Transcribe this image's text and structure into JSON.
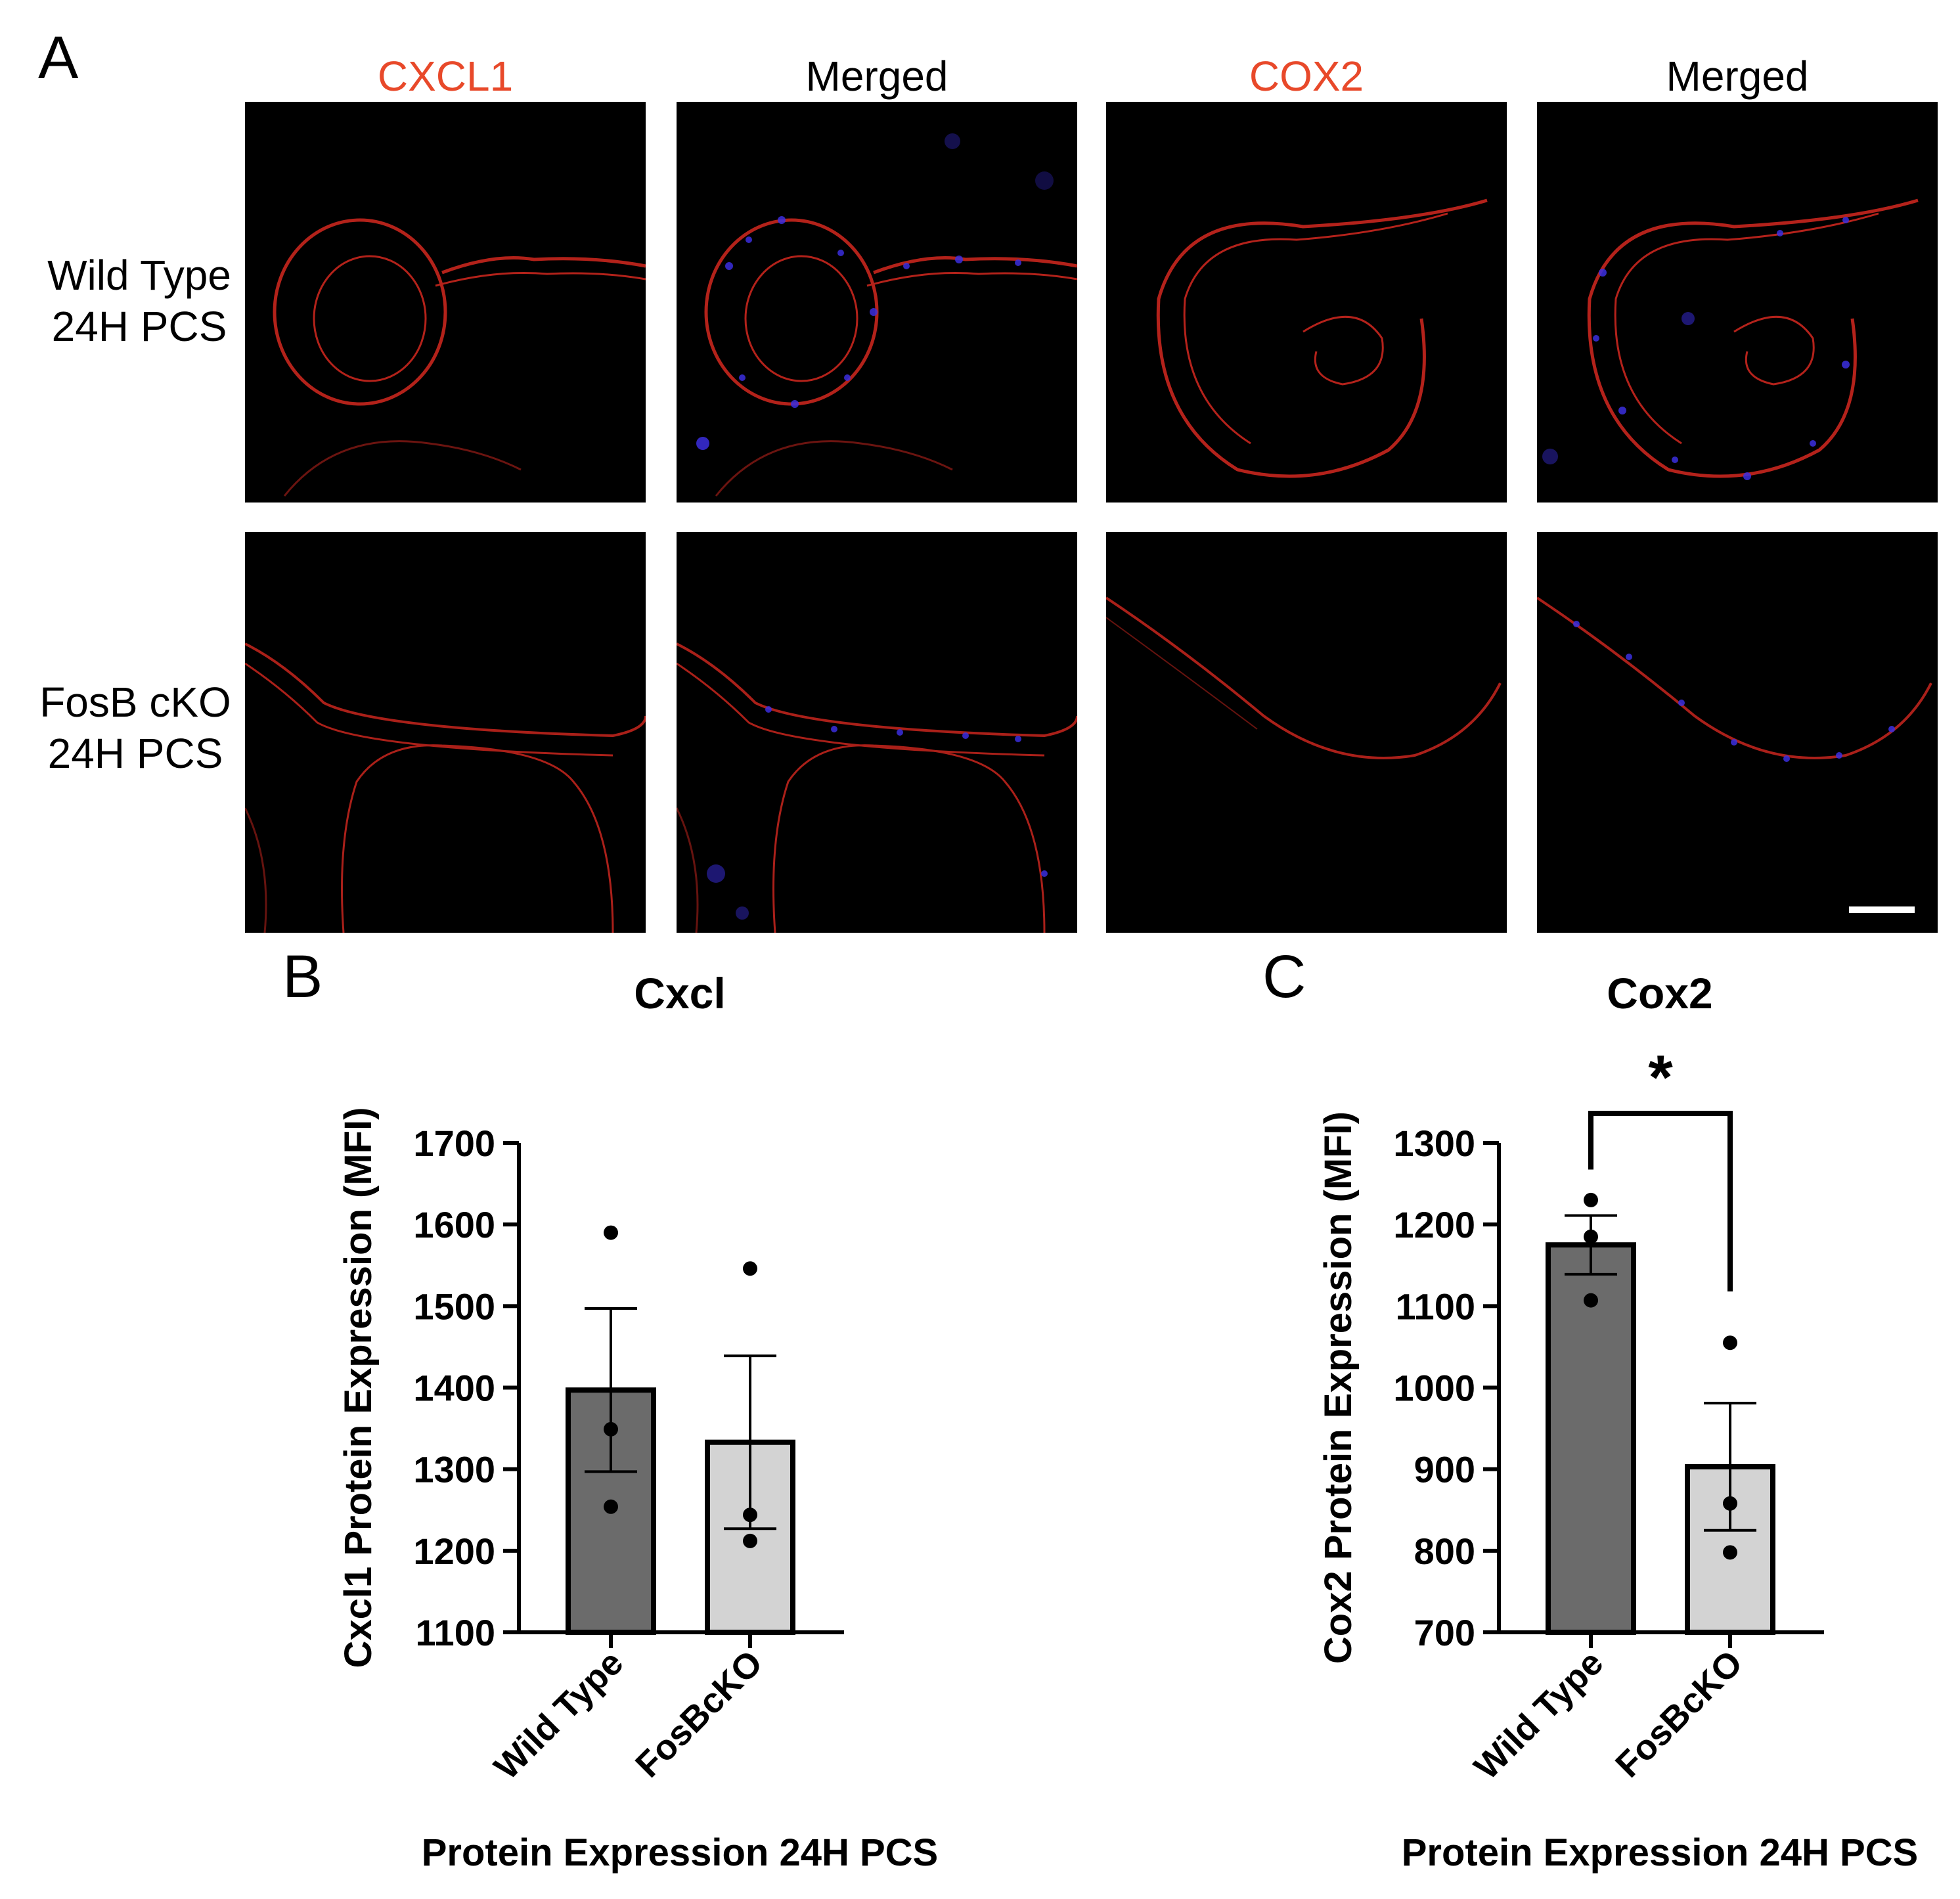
{
  "panel_a": {
    "letter": "A",
    "columns": [
      {
        "label": "CXCL1",
        "color": "#e8492a"
      },
      {
        "label": "Merged",
        "color": "#000000"
      },
      {
        "label": "COX2",
        "color": "#e8492a"
      },
      {
        "label": "Merged",
        "color": "#000000"
      }
    ],
    "rows": [
      {
        "line1": "Wild Type",
        "line2": "24H PCS"
      },
      {
        "line1": "FosB cKO",
        "line2": "24H PCS"
      }
    ],
    "stain_colors": {
      "red": "#d42a22",
      "blue": "#3b2fe0",
      "background": "#000000"
    }
  },
  "chart_data": [
    {
      "panel": "B",
      "type": "bar",
      "title": "Cxcl",
      "xlabel": "Protein Expression 24H PCS",
      "ylabel": "Cxcl1 Protein Expression (MFI)",
      "categories": [
        "Wild Type",
        "FosBcKO"
      ],
      "values": [
        1397,
        1333
      ],
      "error_sem": [
        100,
        106
      ],
      "points": [
        [
          1590,
          1349,
          1254
        ],
        [
          1546,
          1244,
          1212
        ]
      ],
      "bar_colors": [
        "#6b6b6b",
        "#d3d3d3"
      ],
      "ylim": [
        1100,
        1700
      ],
      "yticks": [
        1100,
        1200,
        1300,
        1400,
        1500,
        1600,
        1700
      ],
      "significance": ""
    },
    {
      "panel": "C",
      "type": "bar",
      "title": "Cox2",
      "xlabel": "Protein Expression 24H PCS",
      "ylabel": "Cox2 Protein Expression (MFI)",
      "categories": [
        "Wild Type",
        "FosBcKO"
      ],
      "values": [
        1175,
        903
      ],
      "error_sem": [
        36,
        78
      ],
      "points": [
        [
          1230,
          1185,
          1107
        ],
        [
          1055,
          858,
          798
        ]
      ],
      "bar_colors": [
        "#6b6b6b",
        "#d3d3d3"
      ],
      "ylim": [
        700,
        1300
      ],
      "yticks": [
        700,
        800,
        900,
        1000,
        1100,
        1200,
        1300
      ],
      "significance": "*"
    }
  ]
}
